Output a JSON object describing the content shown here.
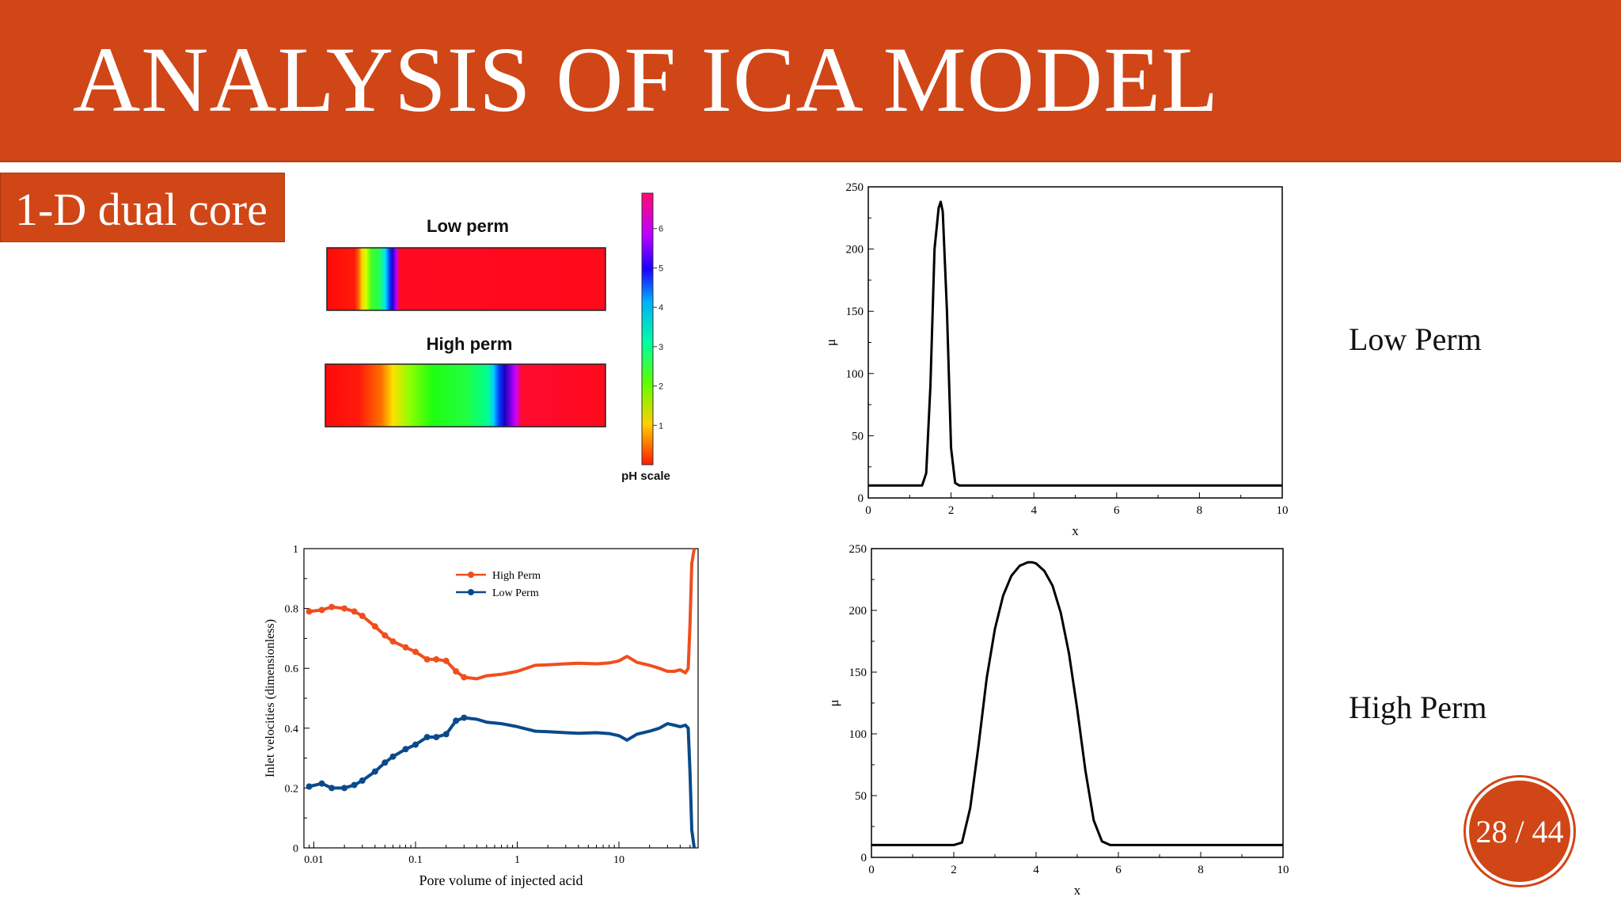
{
  "title": "ANALYSIS OF ICA MODEL",
  "subtitle": "1-D dual core",
  "page_indicator": "28 / 44",
  "side_labels": {
    "low": "Low Perm",
    "high": "High Perm"
  },
  "chart_data": [
    {
      "type": "heatmap",
      "panels": [
        {
          "title": "Low perm"
        },
        {
          "title": "High perm"
        }
      ],
      "colorbar": {
        "label": "pH scale",
        "ticks": [
          "1",
          "2",
          "3",
          "4",
          "5",
          "6"
        ]
      }
    },
    {
      "type": "line",
      "xlabel": "x",
      "ylabel": "μ",
      "xlim": [
        0,
        10
      ],
      "ylim": [
        0,
        250
      ],
      "xticks": [
        "0",
        "2",
        "4",
        "6",
        "8",
        "10"
      ],
      "yticks": [
        "0",
        "50",
        "100",
        "150",
        "200",
        "250"
      ],
      "series": [
        {
          "x": [
            0,
            0.5,
            1.0,
            1.3,
            1.4,
            1.5,
            1.6,
            1.7,
            1.75,
            1.8,
            1.9,
            2.0,
            2.1,
            2.2,
            3,
            5,
            7,
            9,
            10
          ],
          "y": [
            10,
            10,
            10,
            10,
            20,
            90,
            200,
            233,
            238,
            230,
            150,
            40,
            12,
            10,
            10,
            10,
            10,
            10,
            10
          ]
        }
      ]
    },
    {
      "type": "line",
      "xlabel": "x",
      "ylabel": "μ",
      "xlim": [
        0,
        10
      ],
      "ylim": [
        0,
        250
      ],
      "xticks": [
        "0",
        "2",
        "4",
        "6",
        "8",
        "10"
      ],
      "yticks": [
        "0",
        "50",
        "100",
        "150",
        "200",
        "250"
      ],
      "series": [
        {
          "x": [
            0,
            1,
            2.0,
            2.2,
            2.4,
            2.6,
            2.8,
            3.0,
            3.2,
            3.4,
            3.6,
            3.8,
            3.9,
            4.0,
            4.2,
            4.4,
            4.6,
            4.8,
            5.0,
            5.2,
            5.4,
            5.6,
            5.8,
            6,
            8,
            10
          ],
          "y": [
            10,
            10,
            10,
            12,
            40,
            90,
            145,
            185,
            212,
            228,
            236,
            239,
            239,
            238,
            232,
            220,
            198,
            165,
            120,
            70,
            30,
            13,
            10,
            10,
            10,
            10
          ]
        }
      ]
    },
    {
      "type": "line",
      "xlabel": "Pore volume of injected acid",
      "ylabel": "Inlet velocities (dimensionless)",
      "xscale": "log",
      "xlim": [
        0.008,
        60
      ],
      "ylim": [
        0,
        1
      ],
      "xticks": [
        "0.01",
        "0.1",
        "1",
        "10"
      ],
      "yticks": [
        "0",
        "0.2",
        "0.4",
        "0.6",
        "0.8",
        "1"
      ],
      "legend_position": "top-center",
      "series": [
        {
          "name": "High Perm",
          "color": "#f04e1e",
          "x": [
            0.009,
            0.012,
            0.015,
            0.02,
            0.025,
            0.03,
            0.04,
            0.05,
            0.06,
            0.08,
            0.1,
            0.13,
            0.16,
            0.2,
            0.25,
            0.3,
            0.4,
            0.5,
            0.7,
            1,
            1.5,
            2,
            3,
            4,
            6,
            8,
            10,
            12,
            15,
            20,
            25,
            30,
            35,
            40,
            45,
            48,
            50,
            52,
            55
          ],
          "y": [
            0.79,
            0.795,
            0.805,
            0.8,
            0.79,
            0.775,
            0.74,
            0.71,
            0.69,
            0.67,
            0.655,
            0.63,
            0.63,
            0.625,
            0.59,
            0.57,
            0.565,
            0.575,
            0.58,
            0.59,
            0.61,
            0.612,
            0.615,
            0.617,
            0.615,
            0.618,
            0.625,
            0.64,
            0.62,
            0.61,
            0.6,
            0.59,
            0.59,
            0.595,
            0.585,
            0.6,
            0.75,
            0.95,
            1.0
          ]
        },
        {
          "name": "Low Perm",
          "color": "#0a4a8c",
          "x": [
            0.009,
            0.012,
            0.015,
            0.02,
            0.025,
            0.03,
            0.04,
            0.05,
            0.06,
            0.08,
            0.1,
            0.13,
            0.16,
            0.2,
            0.25,
            0.3,
            0.4,
            0.5,
            0.7,
            1,
            1.5,
            2,
            3,
            4,
            6,
            8,
            10,
            12,
            15,
            20,
            25,
            30,
            35,
            40,
            45,
            48,
            50,
            52,
            55
          ],
          "y": [
            0.205,
            0.215,
            0.2,
            0.2,
            0.21,
            0.225,
            0.255,
            0.285,
            0.305,
            0.33,
            0.345,
            0.37,
            0.37,
            0.38,
            0.425,
            0.435,
            0.43,
            0.42,
            0.415,
            0.405,
            0.39,
            0.388,
            0.385,
            0.383,
            0.385,
            0.382,
            0.375,
            0.36,
            0.38,
            0.39,
            0.4,
            0.415,
            0.41,
            0.405,
            0.41,
            0.4,
            0.25,
            0.06,
            0.0
          ]
        }
      ]
    }
  ]
}
